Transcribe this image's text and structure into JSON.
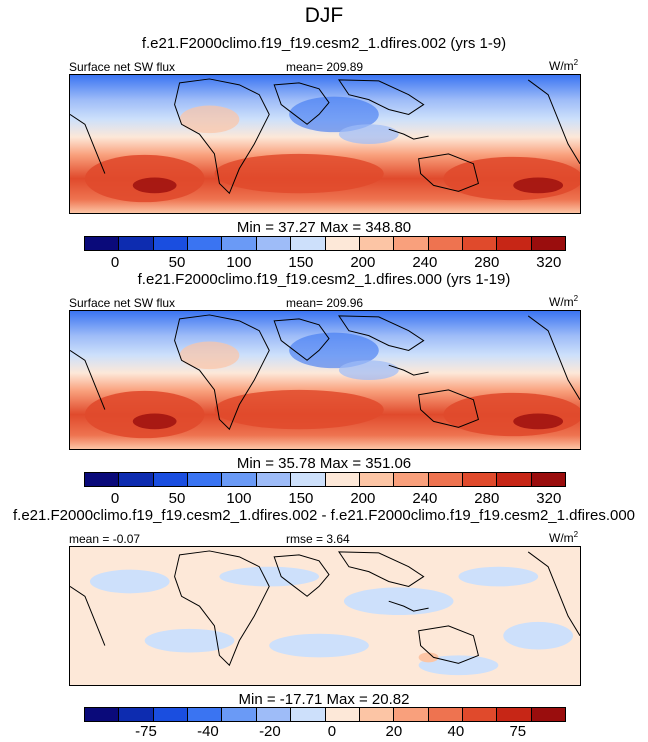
{
  "figure": {
    "title": "DJF"
  },
  "panels": [
    {
      "case_title": "f.e21.F2000climo.f19_f19.cesm2_1.dfires.002 (yrs 1-9)",
      "left_label": "Surface net SW flux",
      "center_label": "mean= 209.89",
      "units": "W/m",
      "units_exp": "2",
      "minmax": "Min =  37.27 Max = 348.80"
    },
    {
      "case_title": "f.e21.F2000climo.f19_f19.cesm2_1.dfires.000 (yrs 1-19)",
      "left_label": "Surface net SW flux",
      "center_label": "mean= 209.96",
      "units": "W/m",
      "units_exp": "2",
      "minmax": "Min =  35.78 Max = 351.06"
    },
    {
      "case_title": "f.e21.F2000climo.f19_f19.cesm2_1.dfires.002 - f.e21.F2000climo.f19_f19.cesm2_1.dfires.000",
      "left_label": "mean =  -0.07",
      "center_label": "rmse =  3.64",
      "units": "W/m",
      "units_exp": "2",
      "minmax": "Min = -17.71 Max =  20.82"
    }
  ],
  "colorbars": {
    "absolute": {
      "colors": [
        "#0a0a7a",
        "#0d2cb0",
        "#1a4ee0",
        "#3a74f2",
        "#6a9af6",
        "#9ebcf8",
        "#cde0fb",
        "#fde8d8",
        "#fcc5a5",
        "#f9a07c",
        "#ee7350",
        "#e04a2c",
        "#c72616",
        "#9a0d0d"
      ],
      "tick_labels": [
        "0",
        "50",
        "100",
        "150",
        "200",
        "240",
        "280",
        "320"
      ]
    },
    "difference": {
      "colors": [
        "#0a0a7a",
        "#0d2cb0",
        "#1a4ee0",
        "#3a74f2",
        "#6a9af6",
        "#9ebcf8",
        "#cde0fb",
        "#fde8d8",
        "#fcc5a5",
        "#f9a07c",
        "#ee7350",
        "#e04a2c",
        "#c72616",
        "#9a0d0d"
      ],
      "tick_labels": [
        "-75",
        "-40",
        "-20",
        "0",
        "20",
        "40",
        "75"
      ]
    }
  },
  "chart_data": [
    {
      "type": "heatmap",
      "title": "f.e21.F2000climo.f19_f19.cesm2_1.dfires.002 (yrs 1-9)",
      "variable": "Surface net SW flux",
      "units": "W/m2",
      "season": "DJF",
      "mean": 209.89,
      "min": 37.27,
      "max": 348.8,
      "contour_levels": [
        0,
        25,
        50,
        75,
        100,
        125,
        150,
        175,
        200,
        220,
        240,
        260,
        280,
        300,
        320
      ],
      "colorbar_tick_labels": [
        "0",
        "50",
        "100",
        "150",
        "200",
        "240",
        "280",
        "320"
      ]
    },
    {
      "type": "heatmap",
      "title": "f.e21.F2000climo.f19_f19.cesm2_1.dfires.000 (yrs 1-19)",
      "variable": "Surface net SW flux",
      "units": "W/m2",
      "season": "DJF",
      "mean": 209.96,
      "min": 35.78,
      "max": 351.06,
      "contour_levels": [
        0,
        25,
        50,
        75,
        100,
        125,
        150,
        175,
        200,
        220,
        240,
        260,
        280,
        300,
        320
      ],
      "colorbar_tick_labels": [
        "0",
        "50",
        "100",
        "150",
        "200",
        "240",
        "280",
        "320"
      ]
    },
    {
      "type": "heatmap",
      "title": "f.e21.F2000climo.f19_f19.cesm2_1.dfires.002 - f.e21.F2000climo.f19_f19.cesm2_1.dfires.000",
      "units": "W/m2",
      "season": "DJF",
      "mean": -0.07,
      "rmse": 3.64,
      "min": -17.71,
      "max": 20.82,
      "contour_levels": [
        -100,
        -75,
        -60,
        -40,
        -30,
        -20,
        -10,
        0,
        10,
        20,
        30,
        40,
        60,
        75,
        100
      ],
      "colorbar_tick_labels": [
        "-75",
        "-40",
        "-20",
        "0",
        "20",
        "40",
        "75"
      ]
    }
  ]
}
